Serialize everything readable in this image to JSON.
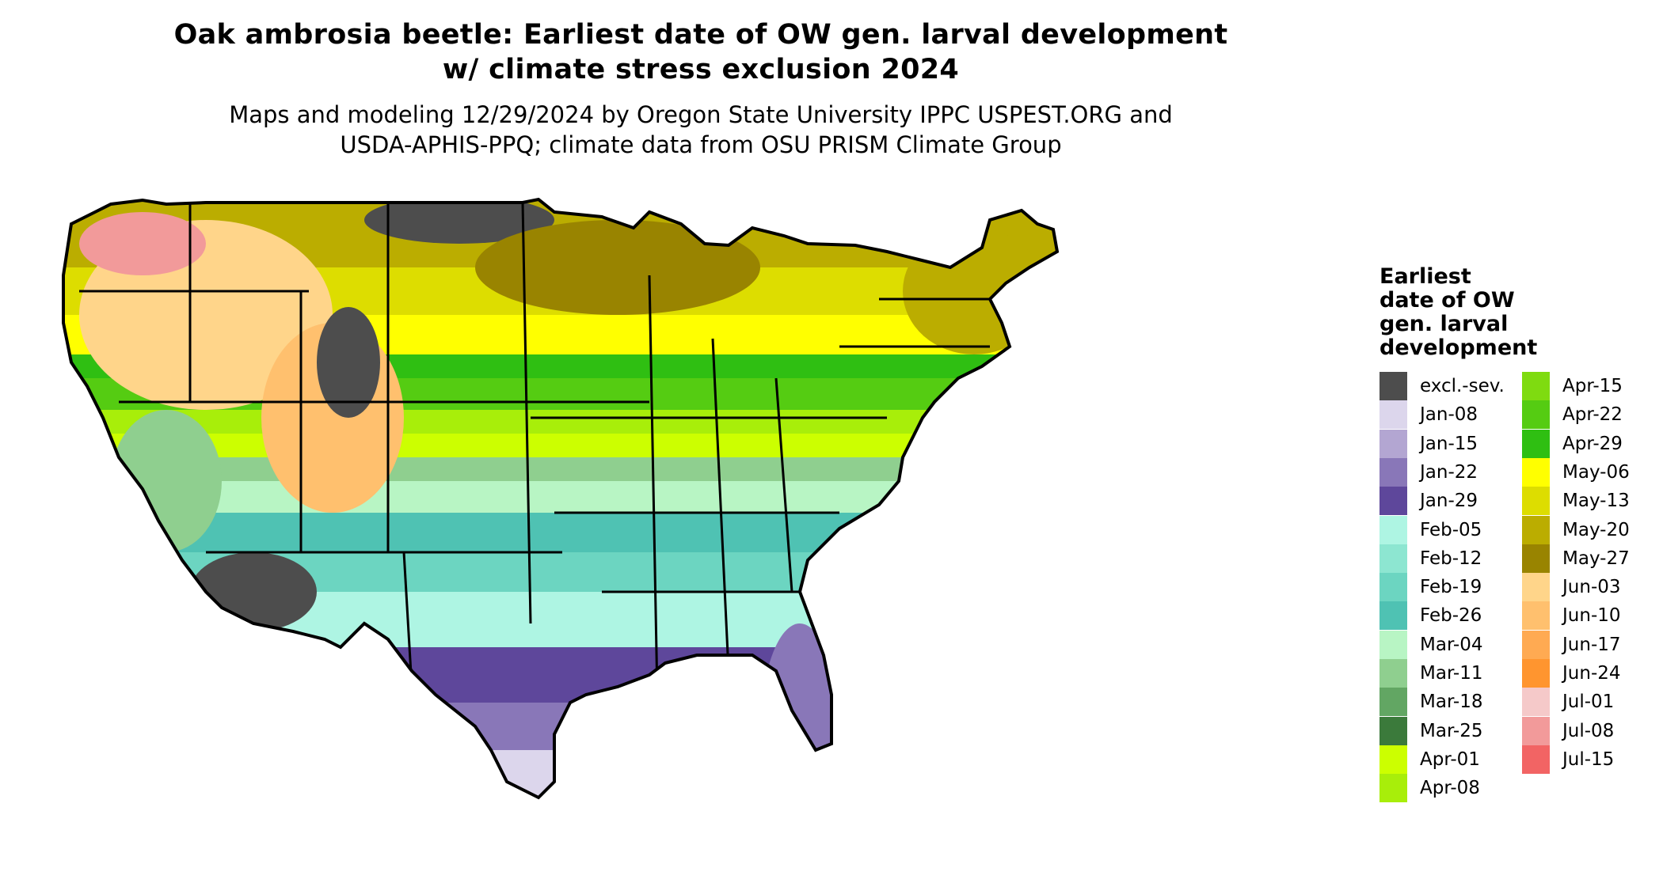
{
  "title": {
    "line1": "Oak ambrosia beetle: Earliest date of OW gen. larval development",
    "line2": "w/ climate stress exclusion 2024"
  },
  "subtitle": {
    "line1": "Maps and modeling 12/29/2024 by Oregon State University IPPC USPEST.ORG and",
    "line2": "USDA-APHIS-PPQ; climate data from OSU PRISM Climate Group"
  },
  "legend": {
    "title_lines": [
      "Earliest",
      "date of OW",
      "gen. larval",
      "development"
    ],
    "items": [
      {
        "label": "excl.-sev.",
        "color": "#4d4d4d"
      },
      {
        "label": "Jan-08",
        "color": "#dcd6ec"
      },
      {
        "label": "Jan-15",
        "color": "#b3a6d2"
      },
      {
        "label": "Jan-22",
        "color": "#8977b8"
      },
      {
        "label": "Jan-29",
        "color": "#5e479b"
      },
      {
        "label": "Feb-05",
        "color": "#aef5e3"
      },
      {
        "label": "Feb-12",
        "color": "#8de6d1"
      },
      {
        "label": "Feb-19",
        "color": "#6cd5c1"
      },
      {
        "label": "Feb-26",
        "color": "#4fc2b3"
      },
      {
        "label": "Mar-04",
        "color": "#b8f5c4"
      },
      {
        "label": "Mar-11",
        "color": "#8fcf8f"
      },
      {
        "label": "Mar-18",
        "color": "#62a663"
      },
      {
        "label": "Mar-25",
        "color": "#3b7a3b"
      },
      {
        "label": "Apr-01",
        "color": "#ccff00"
      },
      {
        "label": "Apr-08",
        "color": "#a8ee0a"
      },
      {
        "label": "Apr-15",
        "color": "#7fdb10"
      },
      {
        "label": "Apr-22",
        "color": "#55cc12"
      },
      {
        "label": "Apr-29",
        "color": "#2fbf12"
      },
      {
        "label": "May-06",
        "color": "#ffff00"
      },
      {
        "label": "May-13",
        "color": "#dddd00"
      },
      {
        "label": "May-20",
        "color": "#bbad00"
      },
      {
        "label": "May-27",
        "color": "#998400"
      },
      {
        "label": "Jun-03",
        "color": "#ffd58a"
      },
      {
        "label": "Jun-10",
        "color": "#ffc06e"
      },
      {
        "label": "Jun-17",
        "color": "#ffaa52"
      },
      {
        "label": "Jun-24",
        "color": "#ff952f"
      },
      {
        "label": "Jul-01",
        "color": "#f5c9c9"
      },
      {
        "label": "Jul-08",
        "color": "#f29a9a"
      },
      {
        "label": "Jul-15",
        "color": "#f26464"
      }
    ]
  }
}
